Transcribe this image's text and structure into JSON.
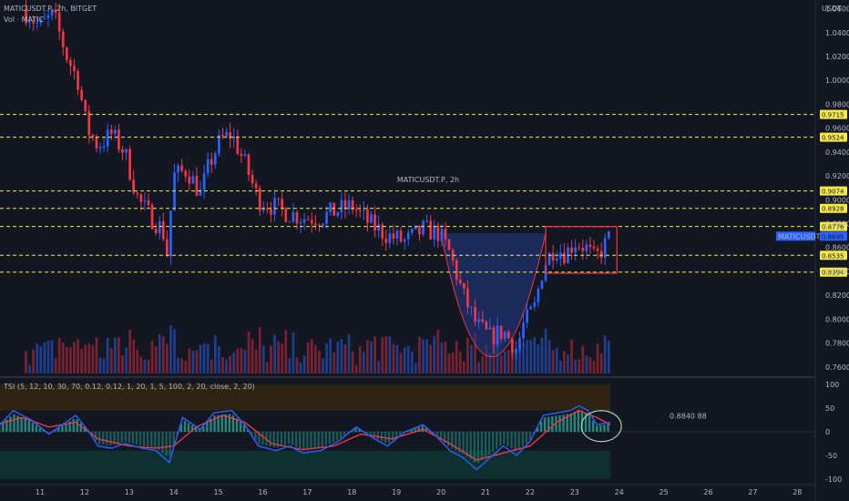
{
  "header": {
    "symbol_line": "MATICUSDT.P, 2h, BITGET",
    "volume_line": "Vol · MATIC",
    "tsi_line": "TSI (5, 12, 10, 30, 70, 0.12, 0.12, 1, 20, 1, 5, 100, 2, 20, close, 2, 20)",
    "currency": "USDT",
    "watermark": "MATICUSDT.P, 2h"
  },
  "colors": {
    "background": "#131722",
    "up": "#2962ff",
    "down": "#f23645",
    "level_line": "#f5e94a",
    "tsi_line": "#2962ff",
    "tsi_signal": "#f23645",
    "annotation_red": "#f23645",
    "cup_fill": "#1f3b8a",
    "ellipse_green": "#a5d6a7"
  },
  "chart_data": [
    {
      "type": "candlestick",
      "title": "MATICUSDT.P, 2h, BITGET",
      "x_tick_labels": [
        "11",
        "12",
        "13",
        "14",
        "15",
        "16",
        "17",
        "18",
        "19",
        "20",
        "21",
        "22",
        "23",
        "24",
        "25",
        "26",
        "27",
        "28"
      ],
      "y_tick_labels": [
        "1.0600",
        "1.0400",
        "1.0200",
        "1.0000",
        "0.9800",
        "0.9600",
        "0.9400",
        "0.9200",
        "0.9000",
        "0.8800",
        "0.8600",
        "0.8400",
        "0.8200",
        "0.8000",
        "0.7800",
        "0.7600"
      ],
      "ylim": [
        0.753,
        1.065
      ],
      "horizontal_levels": [
        {
          "label": "0.9715",
          "value": 0.9715
        },
        {
          "label": "0.9524",
          "value": 0.9524
        },
        {
          "label": "0.9074",
          "value": 0.9074
        },
        {
          "label": "0.8928",
          "value": 0.8928
        },
        {
          "label": "0.8776",
          "value": 0.8776
        },
        {
          "label": "0.8535",
          "value": 0.8535
        },
        {
          "label": "0.8394",
          "value": 0.8394
        }
      ],
      "last_price_label": "MATICUSDT.P",
      "last_price_value": "0.8695",
      "close_path": [
        {
          "day": 10.6,
          "close": 1.06
        },
        {
          "day": 11.0,
          "close": 1.045
        },
        {
          "day": 11.3,
          "close": 1.055
        },
        {
          "day": 11.6,
          "close": 1.02
        },
        {
          "day": 11.85,
          "close": 1.0
        },
        {
          "day": 12.05,
          "close": 0.96
        },
        {
          "day": 12.3,
          "close": 0.945
        },
        {
          "day": 12.6,
          "close": 0.955
        },
        {
          "day": 12.9,
          "close": 0.94
        },
        {
          "day": 13.2,
          "close": 0.9
        },
        {
          "day": 13.5,
          "close": 0.885
        },
        {
          "day": 13.75,
          "close": 0.875
        },
        {
          "day": 13.85,
          "close": 0.855
        },
        {
          "day": 14.0,
          "close": 0.92
        },
        {
          "day": 14.3,
          "close": 0.925
        },
        {
          "day": 14.6,
          "close": 0.905
        },
        {
          "day": 14.8,
          "close": 0.93
        },
        {
          "day": 15.05,
          "close": 0.95
        },
        {
          "day": 15.3,
          "close": 0.955
        },
        {
          "day": 15.6,
          "close": 0.93
        },
        {
          "day": 15.9,
          "close": 0.9
        },
        {
          "day": 16.2,
          "close": 0.895
        },
        {
          "day": 16.5,
          "close": 0.89
        },
        {
          "day": 16.9,
          "close": 0.885
        },
        {
          "day": 17.3,
          "close": 0.885
        },
        {
          "day": 17.6,
          "close": 0.89
        },
        {
          "day": 18.0,
          "close": 0.895
        },
        {
          "day": 18.4,
          "close": 0.88
        },
        {
          "day": 18.8,
          "close": 0.87
        },
        {
          "day": 19.2,
          "close": 0.865
        },
        {
          "day": 19.6,
          "close": 0.875
        },
        {
          "day": 19.95,
          "close": 0.872
        },
        {
          "day": 20.2,
          "close": 0.855
        },
        {
          "day": 20.5,
          "close": 0.82
        },
        {
          "day": 20.8,
          "close": 0.795
        },
        {
          "day": 21.1,
          "close": 0.785
        },
        {
          "day": 21.4,
          "close": 0.79
        },
        {
          "day": 21.7,
          "close": 0.775
        },
        {
          "day": 21.85,
          "close": 0.795
        },
        {
          "day": 22.1,
          "close": 0.81
        },
        {
          "day": 22.3,
          "close": 0.845
        },
        {
          "day": 22.55,
          "close": 0.86
        },
        {
          "day": 22.8,
          "close": 0.855
        },
        {
          "day": 23.0,
          "close": 0.865
        },
        {
          "day": 23.25,
          "close": 0.86
        },
        {
          "day": 23.45,
          "close": 0.85
        },
        {
          "day": 23.65,
          "close": 0.86
        },
        {
          "day": 23.8,
          "close": 0.87
        }
      ],
      "volume": {
        "label": "Vol · MATIC"
      }
    },
    {
      "type": "line",
      "title": "TSI (5, 12, 10, 30, 70, 0.12, 0.12, 1, 20, 1, 5, 100, 2, 20, close, 2, 20)",
      "y_tick_labels": [
        "100",
        "50",
        "0",
        "-50",
        "-100"
      ],
      "ylim": [
        -108,
        108
      ],
      "annotation_text": "0.8840 88",
      "series": [
        {
          "color": "#2962ff",
          "points": [
            {
              "day": 10.0,
              "value": 5
            },
            {
              "day": 10.4,
              "value": 45
            },
            {
              "day": 10.8,
              "value": 25
            },
            {
              "day": 11.2,
              "value": -5
            },
            {
              "day": 11.5,
              "value": 15
            },
            {
              "day": 11.8,
              "value": 35
            },
            {
              "day": 12.1,
              "value": 0
            },
            {
              "day": 12.3,
              "value": -30
            },
            {
              "day": 12.6,
              "value": -35
            },
            {
              "day": 12.9,
              "value": -25
            },
            {
              "day": 13.3,
              "value": -35
            },
            {
              "day": 13.6,
              "value": -40
            },
            {
              "day": 13.9,
              "value": -65
            },
            {
              "day": 14.2,
              "value": 30
            },
            {
              "day": 14.6,
              "value": 5
            },
            {
              "day": 14.9,
              "value": 40
            },
            {
              "day": 15.3,
              "value": 45
            },
            {
              "day": 15.6,
              "value": 15
            },
            {
              "day": 15.9,
              "value": -30
            },
            {
              "day": 16.3,
              "value": -40
            },
            {
              "day": 16.6,
              "value": -30
            },
            {
              "day": 16.9,
              "value": -45
            },
            {
              "day": 17.3,
              "value": -40
            },
            {
              "day": 17.7,
              "value": -20
            },
            {
              "day": 18.1,
              "value": 10
            },
            {
              "day": 18.5,
              "value": -15
            },
            {
              "day": 18.8,
              "value": -30
            },
            {
              "day": 19.2,
              "value": 0
            },
            {
              "day": 19.6,
              "value": 15
            },
            {
              "day": 19.9,
              "value": -10
            },
            {
              "day": 20.2,
              "value": -40
            },
            {
              "day": 20.5,
              "value": -55
            },
            {
              "day": 20.8,
              "value": -80
            },
            {
              "day": 21.1,
              "value": -55
            },
            {
              "day": 21.4,
              "value": -30
            },
            {
              "day": 21.7,
              "value": -50
            },
            {
              "day": 22.0,
              "value": -20
            },
            {
              "day": 22.3,
              "value": 35
            },
            {
              "day": 22.6,
              "value": 40
            },
            {
              "day": 22.9,
              "value": 45
            },
            {
              "day": 23.1,
              "value": 55
            },
            {
              "day": 23.3,
              "value": 45
            },
            {
              "day": 23.5,
              "value": 15
            },
            {
              "day": 23.8,
              "value": 20
            }
          ]
        },
        {
          "color": "#f23645",
          "points": [
            {
              "day": 10.0,
              "value": 15
            },
            {
              "day": 10.6,
              "value": 30
            },
            {
              "day": 11.2,
              "value": 10
            },
            {
              "day": 11.8,
              "value": 20
            },
            {
              "day": 12.3,
              "value": -15
            },
            {
              "day": 13.0,
              "value": -30
            },
            {
              "day": 13.6,
              "value": -35
            },
            {
              "day": 14.0,
              "value": -30
            },
            {
              "day": 14.5,
              "value": 10
            },
            {
              "day": 15.1,
              "value": 35
            },
            {
              "day": 15.6,
              "value": 20
            },
            {
              "day": 16.2,
              "value": -25
            },
            {
              "day": 16.9,
              "value": -38
            },
            {
              "day": 17.6,
              "value": -30
            },
            {
              "day": 18.2,
              "value": -5
            },
            {
              "day": 18.9,
              "value": -15
            },
            {
              "day": 19.6,
              "value": 5
            },
            {
              "day": 20.2,
              "value": -25
            },
            {
              "day": 20.8,
              "value": -60
            },
            {
              "day": 21.4,
              "value": -45
            },
            {
              "day": 22.0,
              "value": -30
            },
            {
              "day": 22.6,
              "value": 20
            },
            {
              "day": 23.1,
              "value": 45
            },
            {
              "day": 23.5,
              "value": 30
            },
            {
              "day": 23.8,
              "value": 15
            }
          ]
        }
      ]
    }
  ]
}
